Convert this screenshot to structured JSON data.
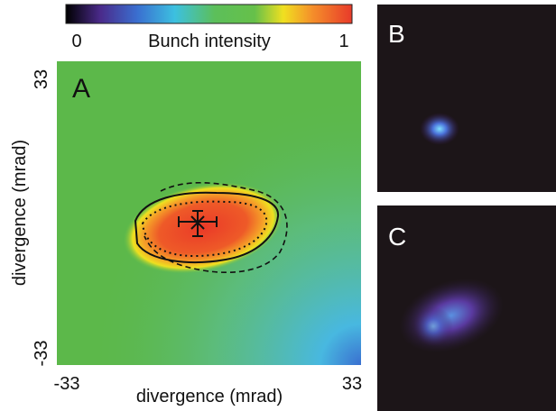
{
  "colorbar": {
    "label": "Bunch intensity",
    "ticks": [
      0,
      1
    ]
  },
  "panels": [
    {
      "label": "A",
      "xlabel": "divergence (mrad)",
      "ylabel": "divergence (mrad)",
      "xticks": [
        -33,
        33
      ],
      "yticks": [
        -33,
        33
      ]
    },
    {
      "label": "B"
    },
    {
      "label": "C"
    }
  ]
}
